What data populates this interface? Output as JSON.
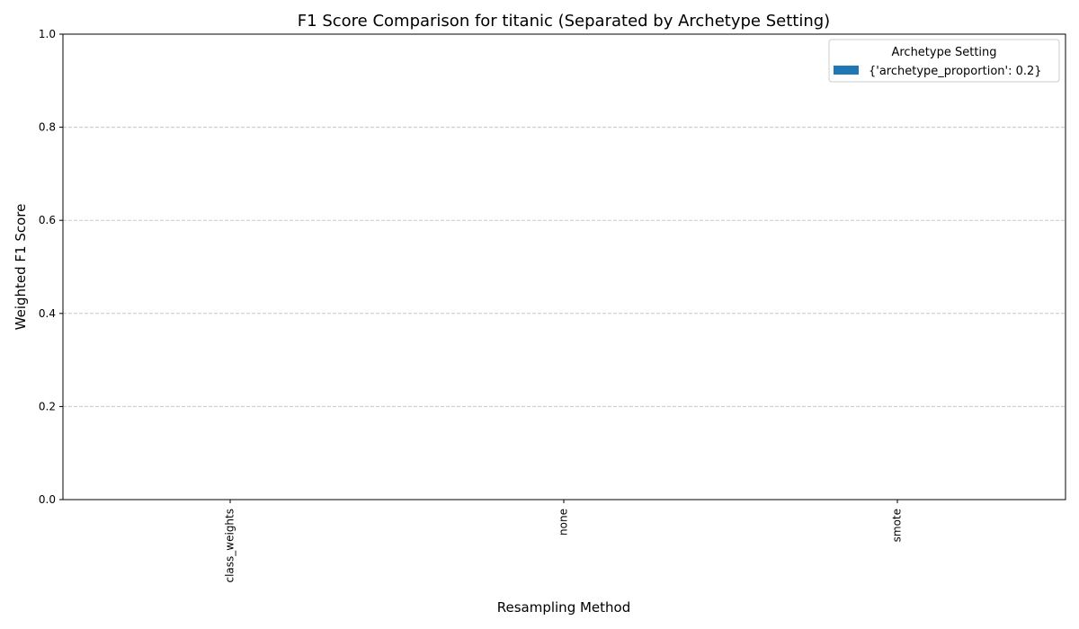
{
  "chart_data": {
    "type": "bar",
    "title": "F1 Score Comparison for titanic (Separated by Archetype Setting)",
    "xlabel": "Resampling Method",
    "ylabel": "Weighted F1 Score",
    "categories": [
      "class_weights",
      "none",
      "smote"
    ],
    "series": [
      {
        "name": "{'archetype_proportion': 0.2}",
        "values": [
          0,
          0,
          0
        ],
        "color": "#1f77b4"
      }
    ],
    "ylim": [
      0,
      1
    ],
    "yticks": [
      "0.0",
      "0.2",
      "0.4",
      "0.6",
      "0.8",
      "1.0"
    ],
    "grid": "horizontal dashed",
    "legend": {
      "title": "Archetype Setting",
      "placement": "top-right"
    },
    "colors": {
      "grid": "#c8c8c8",
      "axis": "#000000"
    }
  }
}
